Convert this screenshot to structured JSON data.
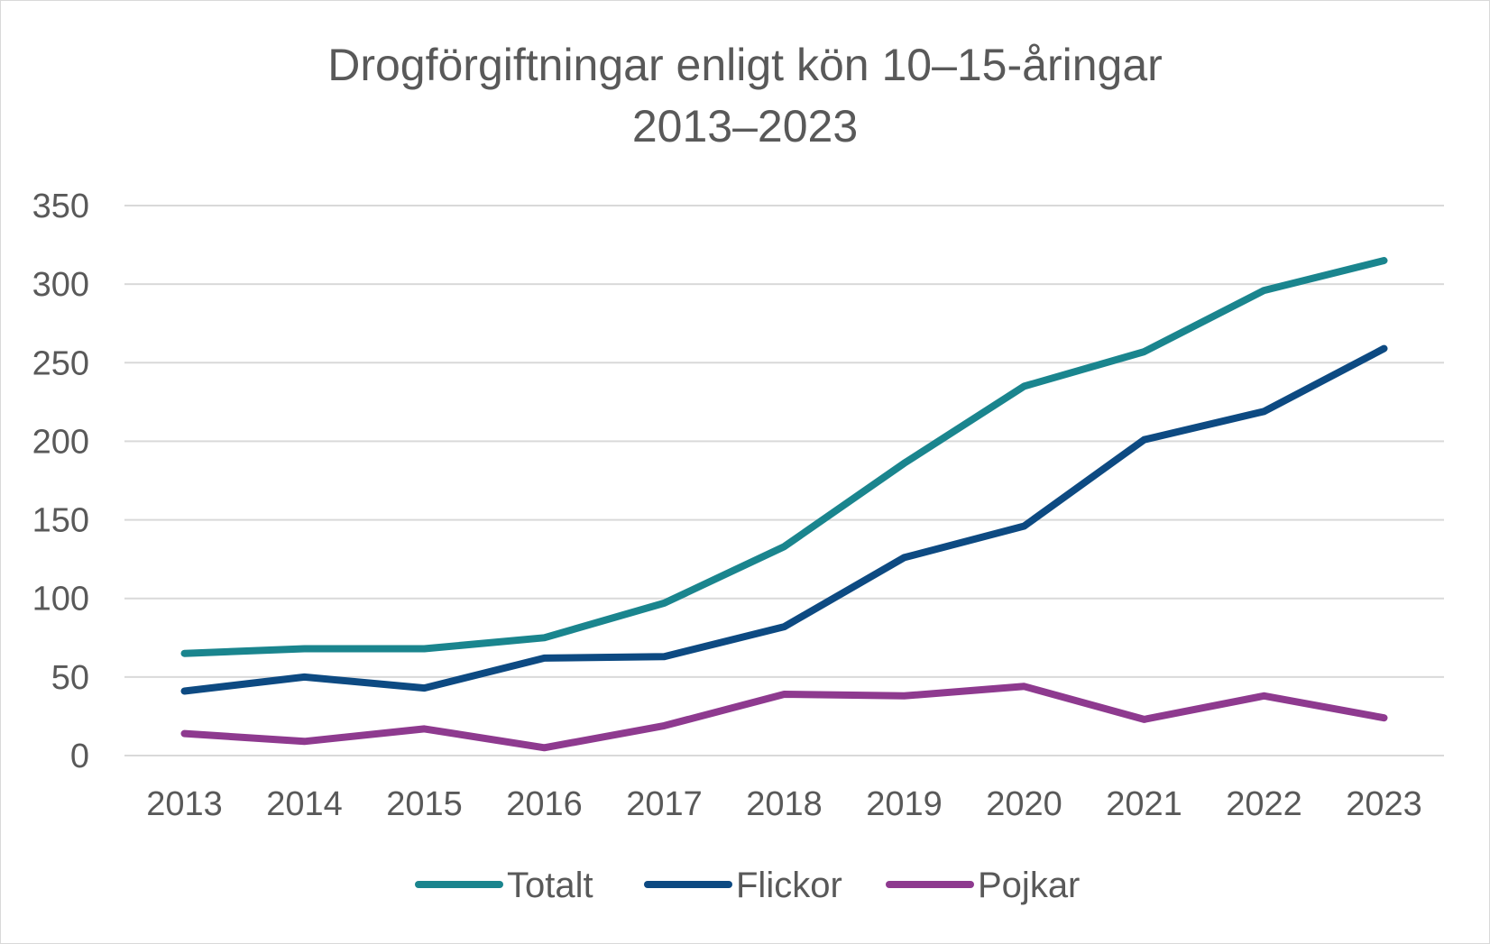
{
  "chart_data": {
    "type": "line",
    "title": [
      "Drogförgiftningar enligt kön 10–15-åringar",
      "2013–2023"
    ],
    "categories": [
      "2013",
      "2014",
      "2015",
      "2016",
      "2017",
      "2018",
      "2019",
      "2020",
      "2021",
      "2022",
      "2023"
    ],
    "ylim": [
      0,
      350
    ],
    "yticks": [
      "0",
      "50",
      "100",
      "150",
      "200",
      "250",
      "300",
      "350"
    ],
    "grid": true,
    "legend_position": "bottom",
    "series": [
      {
        "name": "Totalt",
        "color": "#1a858e",
        "values": [
          65,
          68,
          68,
          75,
          97,
          133,
          186,
          235,
          257,
          296,
          315
        ]
      },
      {
        "name": "Flickor",
        "color": "#0d4a82",
        "values": [
          41,
          50,
          43,
          62,
          63,
          82,
          126,
          146,
          201,
          219,
          259
        ]
      },
      {
        "name": "Pojkar",
        "color": "#8e3a8f",
        "values": [
          14,
          9,
          17,
          5,
          19,
          39,
          38,
          44,
          23,
          38,
          24
        ]
      }
    ]
  }
}
